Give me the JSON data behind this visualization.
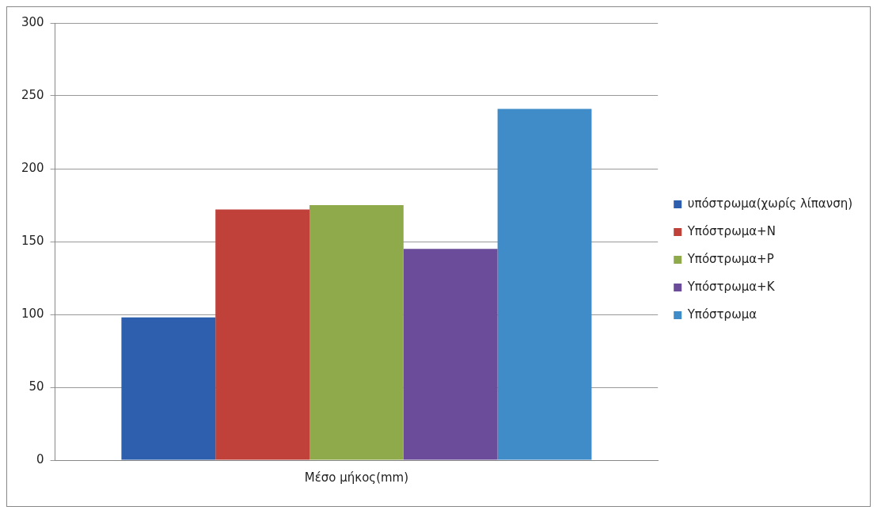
{
  "chart_data": {
    "type": "bar",
    "categories": [
      "Μέσο μήκος(mm)"
    ],
    "series": [
      {
        "name": "υπόστρωμα(χωρίς λίπανση)",
        "color": "#2e5fae",
        "values": [
          98
        ]
      },
      {
        "name": "Υπόστρωμα+N",
        "color": "#c0403a",
        "values": [
          172
        ]
      },
      {
        "name": "Υπόστρωμα+P",
        "color": "#8eaa4a",
        "values": [
          175
        ]
      },
      {
        "name": "Υπόστρωμα+K",
        "color": "#6a4c9a",
        "values": [
          145
        ]
      },
      {
        "name": "Υπόστρωμα",
        "color": "#3f8cc8",
        "values": [
          241
        ]
      }
    ],
    "ylim": [
      0,
      300
    ],
    "yticks": [
      0,
      50,
      100,
      150,
      200,
      250,
      300
    ],
    "grid": "y",
    "legend": "right"
  }
}
